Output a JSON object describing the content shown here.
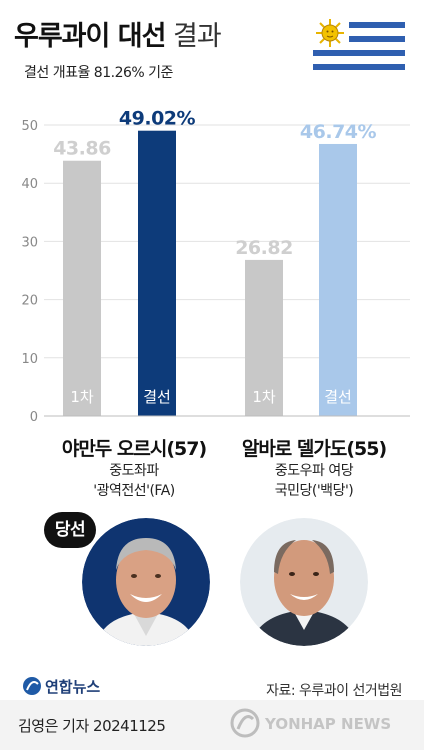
{
  "header": {
    "title_bold": "우루과이 대선",
    "title_light": "결과",
    "subtitle": "결선 개표율 81.26% 기준"
  },
  "chart_data": {
    "type": "bar",
    "ylim": [
      0,
      50
    ],
    "yticks": [
      0,
      10,
      20,
      30,
      40,
      50
    ],
    "grid": true,
    "candidates": [
      {
        "name": "야만두 오르시(57)",
        "party_line1": "중도좌파",
        "party_line2": "'광역전선'(FA)",
        "bars": [
          {
            "label": "1차",
            "value": 43.86,
            "value_text": "43.86",
            "color": "#c8c8c8",
            "text_color": "#cfcfcf"
          },
          {
            "label": "결선",
            "value": 49.02,
            "value_text": "49.02%",
            "color": "#0d3b7a",
            "text_color": "#0d3b7a"
          }
        ]
      },
      {
        "name": "알바로 델가도(55)",
        "party_line1": "중도우파 여당",
        "party_line2": "국민당('백당')",
        "bars": [
          {
            "label": "1차",
            "value": 26.82,
            "value_text": "26.82",
            "color": "#c8c8c8",
            "text_color": "#cfcfcf"
          },
          {
            "label": "결선",
            "value": 46.74,
            "value_text": "46.74%",
            "color": "#a9c8ea",
            "text_color": "#a9c8ea"
          }
        ]
      }
    ]
  },
  "winner_badge": "당선",
  "footer": {
    "logo_text": "연합뉴스",
    "source": "자료: 우루과이 선거법원",
    "reporter": "김영은 기자  20241125",
    "watermark": "YONHAP NEWS"
  }
}
